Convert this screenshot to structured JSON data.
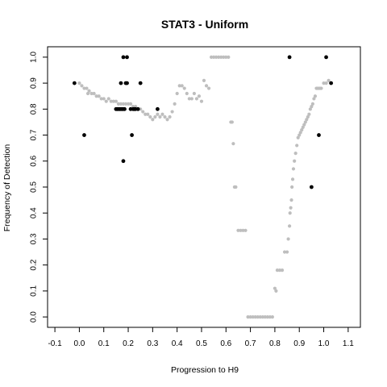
{
  "chart_data": {
    "type": "scatter",
    "title": "STAT3 - Uniform",
    "xlabel": "Progression to H9",
    "ylabel": "Frequency of Detection",
    "xlim": [
      -0.13,
      1.15
    ],
    "ylim": [
      -0.04,
      1.04
    ],
    "x_ticks": [
      -0.1,
      0.0,
      0.1,
      0.2,
      0.3,
      0.4,
      0.5,
      0.6,
      0.7,
      0.8,
      0.9,
      1.0,
      1.1
    ],
    "x_tick_labels": [
      "-0.1",
      "0.0",
      "0.1",
      "0.2",
      "0.3",
      "0.4",
      "0.5",
      "0.6",
      "0.7",
      "0.8",
      "0.9",
      "1.0",
      "1.1"
    ],
    "y_ticks": [
      0.0,
      0.1,
      0.2,
      0.3,
      0.4,
      0.5,
      0.6,
      0.7,
      0.8,
      0.9,
      1.0
    ],
    "y_tick_labels": [
      "0.0",
      "0.1",
      "0.2",
      "0.3",
      "0.4",
      "0.5",
      "0.6",
      "0.7",
      "0.8",
      "0.9",
      "1.0"
    ],
    "grid": false,
    "series": [
      {
        "color": "#bebebe",
        "points": [
          [
            0.0,
            0.9
          ],
          [
            0.01,
            0.89
          ],
          [
            0.02,
            0.88
          ],
          [
            0.03,
            0.88
          ],
          [
            0.035,
            0.86
          ],
          [
            0.04,
            0.87
          ],
          [
            0.05,
            0.86
          ],
          [
            0.06,
            0.86
          ],
          [
            0.07,
            0.85
          ],
          [
            0.08,
            0.85
          ],
          [
            0.09,
            0.84
          ],
          [
            0.1,
            0.84
          ],
          [
            0.11,
            0.83
          ],
          [
            0.12,
            0.84
          ],
          [
            0.13,
            0.83
          ],
          [
            0.14,
            0.83
          ],
          [
            0.15,
            0.83
          ],
          [
            0.16,
            0.82
          ],
          [
            0.17,
            0.82
          ],
          [
            0.18,
            0.82
          ],
          [
            0.19,
            0.82
          ],
          [
            0.2,
            0.82
          ],
          [
            0.21,
            0.82
          ],
          [
            0.22,
            0.81
          ],
          [
            0.23,
            0.81
          ],
          [
            0.24,
            0.8
          ],
          [
            0.25,
            0.8
          ],
          [
            0.26,
            0.79
          ],
          [
            0.27,
            0.78
          ],
          [
            0.28,
            0.78
          ],
          [
            0.29,
            0.77
          ],
          [
            0.3,
            0.76
          ],
          [
            0.31,
            0.77
          ],
          [
            0.32,
            0.78
          ],
          [
            0.33,
            0.77
          ],
          [
            0.34,
            0.78
          ],
          [
            0.35,
            0.77
          ],
          [
            0.36,
            0.76
          ],
          [
            0.37,
            0.77
          ],
          [
            0.38,
            0.79
          ],
          [
            0.39,
            0.82
          ],
          [
            0.4,
            0.86
          ],
          [
            0.41,
            0.89
          ],
          [
            0.42,
            0.89
          ],
          [
            0.43,
            0.88
          ],
          [
            0.44,
            0.86
          ],
          [
            0.45,
            0.84
          ],
          [
            0.46,
            0.84
          ],
          [
            0.47,
            0.86
          ],
          [
            0.48,
            0.84
          ],
          [
            0.49,
            0.85
          ],
          [
            0.5,
            0.83
          ],
          [
            0.51,
            0.91
          ],
          [
            0.52,
            0.89
          ],
          [
            0.53,
            0.88
          ],
          [
            0.54,
            1.0
          ],
          [
            0.55,
            1.0
          ],
          [
            0.56,
            1.0
          ],
          [
            0.57,
            1.0
          ],
          [
            0.58,
            1.0
          ],
          [
            0.59,
            1.0
          ],
          [
            0.6,
            1.0
          ],
          [
            0.61,
            1.0
          ],
          [
            0.62,
            0.75
          ],
          [
            0.625,
            0.75
          ],
          [
            0.63,
            0.667
          ],
          [
            0.635,
            0.5
          ],
          [
            0.64,
            0.5
          ],
          [
            0.65,
            0.333
          ],
          [
            0.66,
            0.333
          ],
          [
            0.67,
            0.333
          ],
          [
            0.68,
            0.333
          ],
          [
            0.69,
            0.0
          ],
          [
            0.7,
            0.0
          ],
          [
            0.71,
            0.0
          ],
          [
            0.72,
            0.0
          ],
          [
            0.73,
            0.0
          ],
          [
            0.74,
            0.0
          ],
          [
            0.75,
            0.0
          ],
          [
            0.76,
            0.0
          ],
          [
            0.77,
            0.0
          ],
          [
            0.78,
            0.0
          ],
          [
            0.79,
            0.0
          ],
          [
            0.8,
            0.11
          ],
          [
            0.805,
            0.1
          ],
          [
            0.81,
            0.18
          ],
          [
            0.82,
            0.18
          ],
          [
            0.83,
            0.18
          ],
          [
            0.84,
            0.25
          ],
          [
            0.85,
            0.25
          ],
          [
            0.855,
            0.3
          ],
          [
            0.86,
            0.35
          ],
          [
            0.862,
            0.4
          ],
          [
            0.865,
            0.42
          ],
          [
            0.868,
            0.45
          ],
          [
            0.87,
            0.5
          ],
          [
            0.873,
            0.53
          ],
          [
            0.876,
            0.57
          ],
          [
            0.88,
            0.6
          ],
          [
            0.885,
            0.63
          ],
          [
            0.89,
            0.66
          ],
          [
            0.895,
            0.69
          ],
          [
            0.9,
            0.7
          ],
          [
            0.905,
            0.71
          ],
          [
            0.91,
            0.72
          ],
          [
            0.915,
            0.73
          ],
          [
            0.92,
            0.74
          ],
          [
            0.925,
            0.75
          ],
          [
            0.93,
            0.76
          ],
          [
            0.935,
            0.77
          ],
          [
            0.94,
            0.78
          ],
          [
            0.945,
            0.8
          ],
          [
            0.95,
            0.81
          ],
          [
            0.955,
            0.82
          ],
          [
            0.96,
            0.84
          ],
          [
            0.965,
            0.85
          ],
          [
            0.97,
            0.88
          ],
          [
            0.975,
            0.88
          ],
          [
            0.98,
            0.88
          ],
          [
            0.985,
            0.88
          ],
          [
            0.99,
            0.88
          ],
          [
            1.0,
            0.9
          ],
          [
            1.01,
            0.9
          ],
          [
            1.02,
            0.91
          ]
        ]
      },
      {
        "color": "#000000",
        "points": [
          [
            -0.02,
            0.9
          ],
          [
            0.02,
            0.7
          ],
          [
            0.15,
            0.8
          ],
          [
            0.155,
            0.8
          ],
          [
            0.16,
            0.8
          ],
          [
            0.165,
            0.8
          ],
          [
            0.17,
            0.9
          ],
          [
            0.17,
            0.8
          ],
          [
            0.175,
            0.8
          ],
          [
            0.18,
            0.6
          ],
          [
            0.18,
            0.8
          ],
          [
            0.185,
            0.8
          ],
          [
            0.18,
            1.0
          ],
          [
            0.195,
            1.0
          ],
          [
            0.19,
            0.9
          ],
          [
            0.195,
            0.9
          ],
          [
            0.21,
            0.8
          ],
          [
            0.215,
            0.7
          ],
          [
            0.22,
            0.8
          ],
          [
            0.225,
            0.8
          ],
          [
            0.23,
            0.8
          ],
          [
            0.24,
            0.8
          ],
          [
            0.25,
            0.9
          ],
          [
            0.32,
            0.8
          ],
          [
            0.86,
            1.0
          ],
          [
            0.95,
            0.5
          ],
          [
            0.98,
            0.7
          ],
          [
            1.01,
            1.0
          ],
          [
            1.03,
            0.9
          ]
        ]
      }
    ]
  }
}
